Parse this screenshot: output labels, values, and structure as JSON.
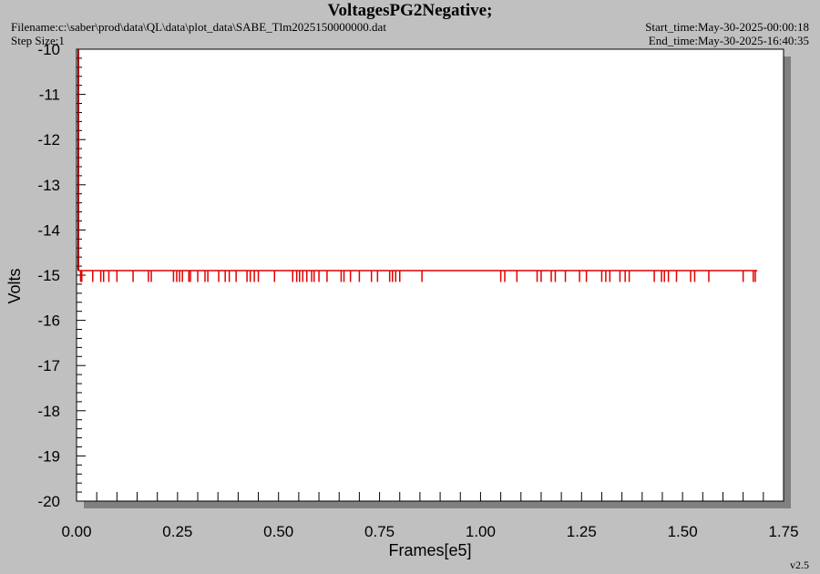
{
  "header": {
    "title": "VoltagesPG2Negative;",
    "filename": "Filename:c:\\saber\\prod\\data\\QL\\data\\plot_data\\SABE_Tlm2025150000000.dat",
    "step_size": "Step Size:1",
    "start_time": "Start_time:May-30-2025-00:00:18",
    "end_time": "End_time:May-30-2025-16:40:35",
    "version": "v2.5"
  },
  "colors": {
    "background": "#c0c0c0",
    "plot_bg": "#ffffff",
    "series": "#e00000",
    "y_axis_start": "#a00000"
  },
  "chart_data": {
    "type": "line",
    "xlabel": "Frames[e5]",
    "ylabel": "Volts",
    "xlim": [
      0,
      1.75
    ],
    "ylim": [
      -20,
      -10
    ],
    "x_ticks": [
      "0.00",
      "0.25",
      "0.50",
      "0.75",
      "1.00",
      "1.25",
      "1.50",
      "1.75"
    ],
    "y_ticks": [
      "-10",
      "-11",
      "-12",
      "-13",
      "-14",
      "-15",
      "-16",
      "-17",
      "-18",
      "-19",
      "-20"
    ],
    "grid": false,
    "series": [
      {
        "baseline": -14.9,
        "dip_value": -15.15,
        "x_range": [
          0,
          1.685
        ],
        "initial_spike_from": -10,
        "dips_x": [
          0.01,
          0.013,
          0.04,
          0.06,
          0.067,
          0.08,
          0.1,
          0.14,
          0.178,
          0.185,
          0.24,
          0.248,
          0.255,
          0.262,
          0.278,
          0.282,
          0.3,
          0.318,
          0.325,
          0.352,
          0.368,
          0.378,
          0.395,
          0.422,
          0.43,
          0.44,
          0.45,
          0.49,
          0.535,
          0.545,
          0.552,
          0.56,
          0.57,
          0.582,
          0.588,
          0.6,
          0.62,
          0.655,
          0.662,
          0.678,
          0.7,
          0.73,
          0.745,
          0.775,
          0.782,
          0.79,
          0.8,
          0.855,
          1.05,
          1.06,
          1.09,
          1.14,
          1.15,
          1.175,
          1.185,
          1.21,
          1.245,
          1.262,
          1.3,
          1.31,
          1.32,
          1.345,
          1.358,
          1.368,
          1.43,
          1.448,
          1.455,
          1.465,
          1.485,
          1.52,
          1.53,
          1.565,
          1.65,
          1.675,
          1.68
        ]
      }
    ]
  }
}
